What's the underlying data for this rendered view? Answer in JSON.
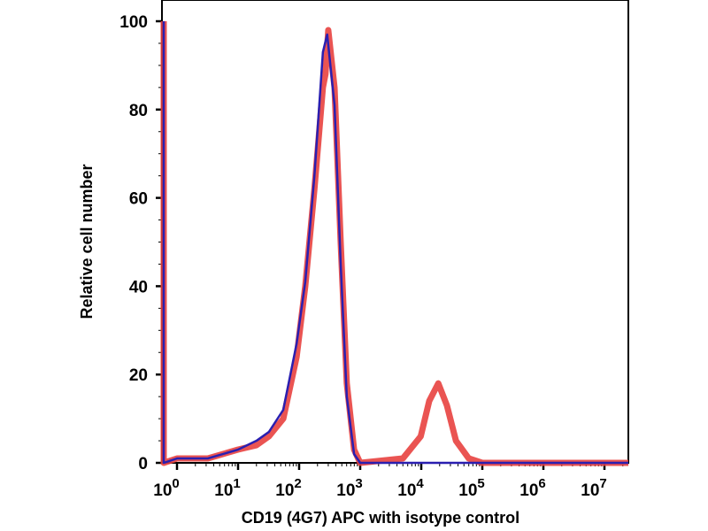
{
  "chart_data": {
    "type": "line",
    "title": "",
    "xlabel": "CD19 (4G7) APC with isotype control",
    "ylabel": "Relative cell number",
    "x_scale": "log",
    "xlim": [
      0.56,
      25000000
    ],
    "ylim": [
      0,
      100
    ],
    "x_ticks": [
      {
        "base": "10",
        "exp": "0",
        "value": 1
      },
      {
        "base": "10",
        "exp": "1",
        "value": 10
      },
      {
        "base": "10",
        "exp": "2",
        "value": 100
      },
      {
        "base": "10",
        "exp": "3",
        "value": 1000
      },
      {
        "base": "10",
        "exp": "4",
        "value": 10000
      },
      {
        "base": "10",
        "exp": "5",
        "value": 100000
      },
      {
        "base": "10",
        "exp": "6",
        "value": 1000000
      },
      {
        "base": "10",
        "exp": "7",
        "value": 10000000
      }
    ],
    "y_ticks": [
      "0",
      "20",
      "40",
      "60",
      "80",
      "100"
    ],
    "grid": false,
    "series": [
      {
        "color": "#e8413f",
        "points": [
          [
            0.56,
            100
          ],
          [
            0.6,
            0
          ],
          [
            1,
            1
          ],
          [
            3.2,
            1
          ],
          [
            10,
            3
          ],
          [
            20,
            4
          ],
          [
            32,
            6
          ],
          [
            55,
            10
          ],
          [
            91,
            24
          ],
          [
            126,
            40
          ],
          [
            178,
            62
          ],
          [
            245,
            85
          ],
          [
            270,
            88
          ],
          [
            300,
            98
          ],
          [
            380,
            85
          ],
          [
            479,
            50
          ],
          [
            603,
            18
          ],
          [
            794,
            3
          ],
          [
            1000,
            0
          ],
          [
            5000,
            1
          ],
          [
            9800,
            6
          ],
          [
            13500,
            14
          ],
          [
            19000,
            18
          ],
          [
            26300,
            13
          ],
          [
            37000,
            5
          ],
          [
            60000,
            1
          ],
          [
            100000,
            0
          ],
          [
            25000000,
            0
          ]
        ]
      },
      {
        "color": "#2a1fb0",
        "points": [
          [
            0.56,
            100
          ],
          [
            0.6,
            0
          ],
          [
            1,
            1
          ],
          [
            3.2,
            1
          ],
          [
            10,
            3
          ],
          [
            20,
            5
          ],
          [
            32,
            7
          ],
          [
            55,
            12
          ],
          [
            91,
            27
          ],
          [
            126,
            41
          ],
          [
            178,
            65
          ],
          [
            245,
            93
          ],
          [
            288,
            97
          ],
          [
            380,
            81
          ],
          [
            479,
            45
          ],
          [
            603,
            15
          ],
          [
            794,
            2
          ],
          [
            1000,
            0
          ],
          [
            25000000,
            0
          ]
        ]
      }
    ]
  }
}
